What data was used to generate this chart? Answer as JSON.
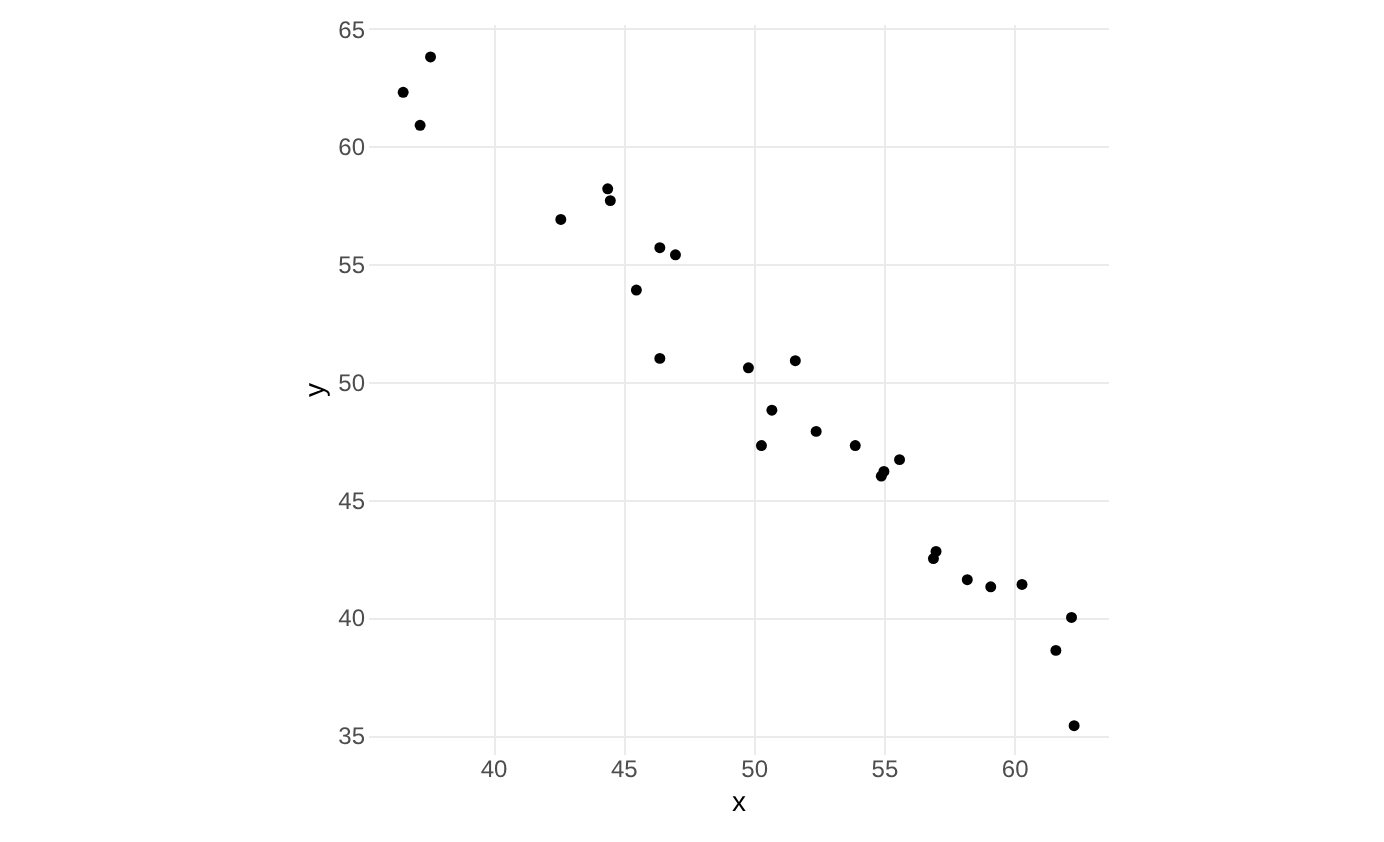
{
  "chart_data": {
    "type": "scatter",
    "xlabel": "x",
    "ylabel": "y",
    "xlim": [
      35.2,
      63.6
    ],
    "ylim": [
      34.2,
      65.2
    ],
    "xticks": [
      40,
      45,
      50,
      55,
      60
    ],
    "yticks": [
      35,
      40,
      45,
      50,
      55,
      60,
      65
    ],
    "grid": true,
    "marker": "circle",
    "series": [
      {
        "color": "#000000",
        "x": [
          36.55,
          37.2,
          37.6,
          42.6,
          44.4,
          44.5,
          45.5,
          46.4,
          47.0,
          46.4,
          49.8,
          50.3,
          50.7,
          51.6,
          52.4,
          53.9,
          54.9,
          55.0,
          55.6,
          56.9,
          57.0,
          58.2,
          59.1,
          60.3,
          61.6,
          62.2,
          62.3
        ],
        "values": [
          62.3,
          60.9,
          63.8,
          56.9,
          58.2,
          57.7,
          53.9,
          55.7,
          55.4,
          51.0,
          50.6,
          47.3,
          48.8,
          50.9,
          47.9,
          47.3,
          46.0,
          46.2,
          46.7,
          42.5,
          42.8,
          41.6,
          41.3,
          41.4,
          38.6,
          40.0,
          35.4
        ]
      }
    ]
  }
}
